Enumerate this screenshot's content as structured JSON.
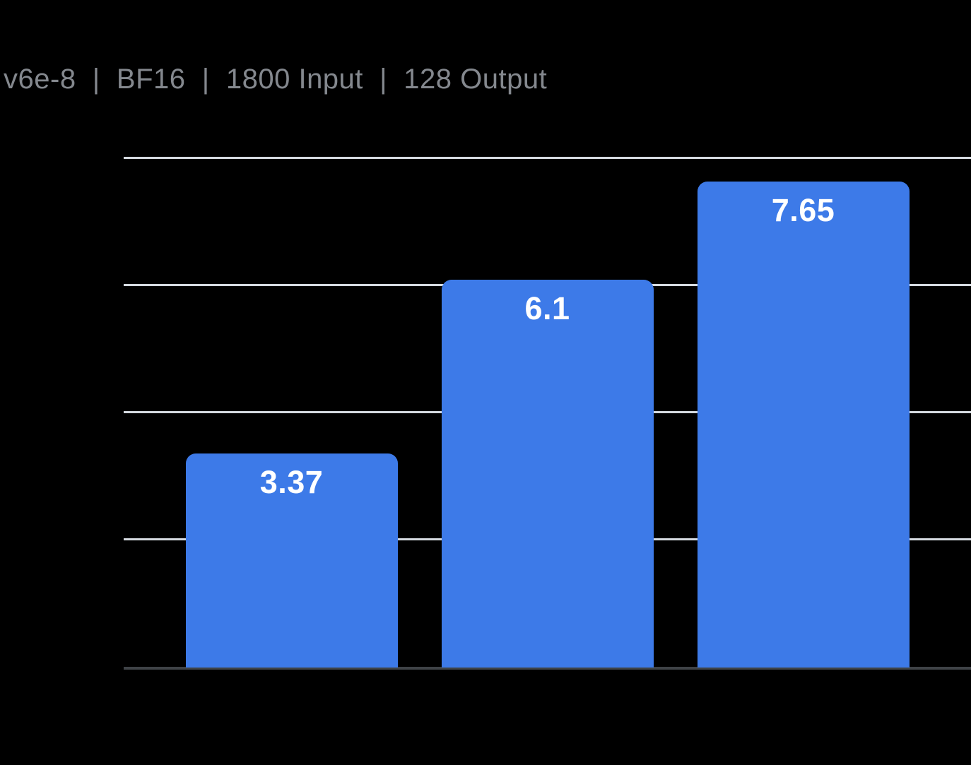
{
  "chart_data": {
    "type": "bar",
    "title": "v6e-8  |  BF16  |  1800 Input  |  128 Output",
    "values": [
      3.37,
      6.1,
      7.65
    ],
    "labels": [
      "3.37",
      "6.1",
      "7.65"
    ],
    "categories": [
      "",
      "",
      ""
    ],
    "xlabel": "",
    "ylabel": "",
    "ylim": [
      0,
      8
    ],
    "grid_step": 2,
    "grid": true,
    "legend": false,
    "x_tick_labels_visible": false,
    "y_tick_labels_visible": false
  },
  "colors": {
    "background": "#000000",
    "bar": "#3D7AE8",
    "bar_label": "#FFFFFF",
    "gridline": "#D5DAE0",
    "axis_line": "#3F4347",
    "title_text": "#84888E"
  }
}
